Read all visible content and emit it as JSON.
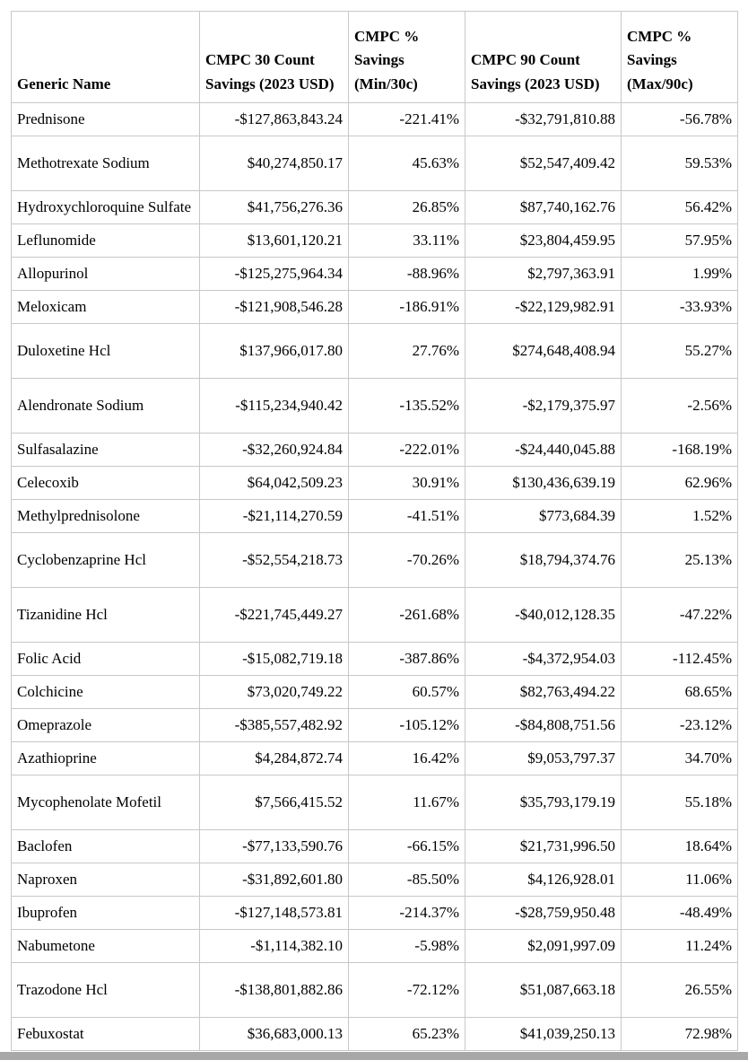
{
  "colors": {
    "background": "#ffffff",
    "text": "#000000",
    "table_border": "#c8c8c8",
    "scrollbar": "#a8a8a8"
  },
  "chart_data": {
    "type": "table",
    "columns": [
      "Generic Name",
      "CMPC 30 Count Savings (2023 USD)",
      "CMPC % Savings (Min/30c)",
      "CMPC 90 Count Savings (2023 USD)",
      "CMPC % Savings (Max/90c)"
    ],
    "rows": [
      {
        "tall": false,
        "cells": [
          "Prednisone",
          "-$127,863,843.24",
          "-221.41%",
          "-$32,791,810.88",
          "-56.78%"
        ]
      },
      {
        "tall": true,
        "cells": [
          "Methotrexate Sodium",
          "$40,274,850.17",
          "45.63%",
          "$52,547,409.42",
          "59.53%"
        ]
      },
      {
        "tall": false,
        "cells": [
          "Hydroxychloroquine Sulfate",
          "$41,756,276.36",
          "26.85%",
          "$87,740,162.76",
          "56.42%"
        ]
      },
      {
        "tall": false,
        "cells": [
          "Leflunomide",
          "$13,601,120.21",
          "33.11%",
          "$23,804,459.95",
          "57.95%"
        ]
      },
      {
        "tall": false,
        "cells": [
          "Allopurinol",
          "-$125,275,964.34",
          "-88.96%",
          "$2,797,363.91",
          "1.99%"
        ]
      },
      {
        "tall": false,
        "cells": [
          "Meloxicam",
          "-$121,908,546.28",
          "-186.91%",
          "-$22,129,982.91",
          "-33.93%"
        ]
      },
      {
        "tall": true,
        "cells": [
          "Duloxetine Hcl",
          "$137,966,017.80",
          "27.76%",
          "$274,648,408.94",
          "55.27%"
        ]
      },
      {
        "tall": true,
        "cells": [
          "Alendronate Sodium",
          "-$115,234,940.42",
          "-135.52%",
          "-$2,179,375.97",
          "-2.56%"
        ]
      },
      {
        "tall": false,
        "cells": [
          "Sulfasalazine",
          "-$32,260,924.84",
          "-222.01%",
          "-$24,440,045.88",
          "-168.19%"
        ]
      },
      {
        "tall": false,
        "cells": [
          "Celecoxib",
          "$64,042,509.23",
          "30.91%",
          "$130,436,639.19",
          "62.96%"
        ]
      },
      {
        "tall": false,
        "cells": [
          "Methylprednisolone",
          "-$21,114,270.59",
          "-41.51%",
          "$773,684.39",
          "1.52%"
        ]
      },
      {
        "tall": true,
        "cells": [
          "Cyclobenzaprine Hcl",
          "-$52,554,218.73",
          "-70.26%",
          "$18,794,374.76",
          "25.13%"
        ]
      },
      {
        "tall": true,
        "cells": [
          "Tizanidine Hcl",
          "-$221,745,449.27",
          "-261.68%",
          "-$40,012,128.35",
          "-47.22%"
        ]
      },
      {
        "tall": false,
        "cells": [
          "Folic Acid",
          "-$15,082,719.18",
          "-387.86%",
          "-$4,372,954.03",
          "-112.45%"
        ]
      },
      {
        "tall": false,
        "cells": [
          "Colchicine",
          "$73,020,749.22",
          "60.57%",
          "$82,763,494.22",
          "68.65%"
        ]
      },
      {
        "tall": false,
        "cells": [
          "Omeprazole",
          "-$385,557,482.92",
          "-105.12%",
          "-$84,808,751.56",
          "-23.12%"
        ]
      },
      {
        "tall": false,
        "cells": [
          "Azathioprine",
          "$4,284,872.74",
          "16.42%",
          "$9,053,797.37",
          "34.70%"
        ]
      },
      {
        "tall": true,
        "cells": [
          "Mycophenolate Mofetil",
          "$7,566,415.52",
          "11.67%",
          "$35,793,179.19",
          "55.18%"
        ]
      },
      {
        "tall": false,
        "cells": [
          "Baclofen",
          "-$77,133,590.76",
          "-66.15%",
          "$21,731,996.50",
          "18.64%"
        ]
      },
      {
        "tall": false,
        "cells": [
          "Naproxen",
          "-$31,892,601.80",
          "-85.50%",
          "$4,126,928.01",
          "11.06%"
        ]
      },
      {
        "tall": false,
        "cells": [
          "Ibuprofen",
          "-$127,148,573.81",
          "-214.37%",
          "-$28,759,950.48",
          "-48.49%"
        ]
      },
      {
        "tall": false,
        "cells": [
          "Nabumetone",
          "-$1,114,382.10",
          "-5.98%",
          "$2,091,997.09",
          "11.24%"
        ]
      },
      {
        "tall": true,
        "cells": [
          "Trazodone Hcl",
          "-$138,801,882.86",
          "-72.12%",
          "$51,087,663.18",
          "26.55%"
        ]
      },
      {
        "tall": false,
        "cells": [
          "Febuxostat",
          "$36,683,000.13",
          "65.23%",
          "$41,039,250.13",
          "72.98%"
        ]
      }
    ]
  }
}
